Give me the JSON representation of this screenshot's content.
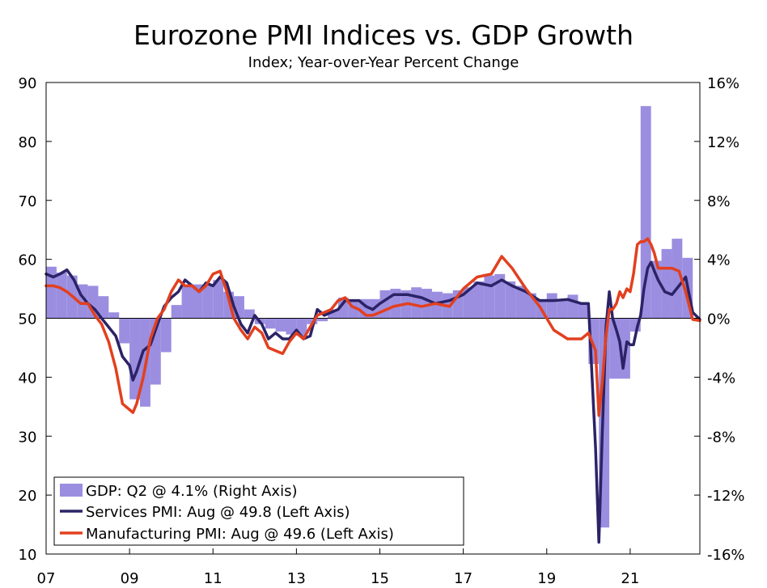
{
  "chart_data": {
    "type": "bar+line",
    "title": "Eurozone PMI Indices vs. GDP Growth",
    "subtitle": "Index; Year-over-Year Percent Change",
    "x_tick_labels": [
      "07",
      "09",
      "11",
      "13",
      "15",
      "17",
      "19",
      "21"
    ],
    "x_tick_years": [
      2007,
      2009,
      2011,
      2013,
      2015,
      2017,
      2019,
      2021
    ],
    "x_range": [
      2007.0,
      2022.67
    ],
    "left_axis": {
      "ylim": [
        10,
        90
      ],
      "ticks": [
        10,
        20,
        30,
        40,
        50,
        60,
        70,
        80,
        90
      ],
      "tick_labels": [
        "10",
        "20",
        "30",
        "40",
        "50",
        "60",
        "70",
        "80",
        "90"
      ]
    },
    "right_axis": {
      "ylim": [
        -16,
        16
      ],
      "ticks": [
        -16,
        -12,
        -8,
        -4,
        0,
        4,
        8,
        12,
        16
      ],
      "tick_labels": [
        "-16%",
        "-12%",
        "-8%",
        "-4%",
        "0%",
        "4%",
        "8%",
        "12%",
        "16%"
      ]
    },
    "legend": {
      "placement": "bottom-left",
      "entries": [
        {
          "label": "GDP: Q2 @ 4.1% (Right Axis)",
          "kind": "bar"
        },
        {
          "label": "Services PMI: Aug @ 49.8 (Left Axis)",
          "kind": "line"
        },
        {
          "label": "Manufacturing PMI: Aug @ 49.6 (Left Axis)",
          "kind": "line"
        }
      ]
    },
    "colors": {
      "gdp": "#9b8ee0",
      "services": "#2b2366",
      "manufacturing": "#e2401f"
    },
    "gdp": {
      "axis": "right",
      "periods": [
        "2007Q1",
        "2007Q2",
        "2007Q3",
        "2007Q4",
        "2008Q1",
        "2008Q2",
        "2008Q3",
        "2008Q4",
        "2009Q1",
        "2009Q2",
        "2009Q3",
        "2009Q4",
        "2010Q1",
        "2010Q2",
        "2010Q3",
        "2010Q4",
        "2011Q1",
        "2011Q2",
        "2011Q3",
        "2011Q4",
        "2012Q1",
        "2012Q2",
        "2012Q3",
        "2012Q4",
        "2013Q1",
        "2013Q2",
        "2013Q3",
        "2013Q4",
        "2014Q1",
        "2014Q2",
        "2014Q3",
        "2014Q4",
        "2015Q1",
        "2015Q2",
        "2015Q3",
        "2015Q4",
        "2016Q1",
        "2016Q2",
        "2016Q3",
        "2016Q4",
        "2017Q1",
        "2017Q2",
        "2017Q3",
        "2017Q4",
        "2018Q1",
        "2018Q2",
        "2018Q3",
        "2018Q4",
        "2019Q1",
        "2019Q2",
        "2019Q3",
        "2019Q4",
        "2020Q1",
        "2020Q2",
        "2020Q3",
        "2020Q4",
        "2021Q1",
        "2021Q2",
        "2021Q3",
        "2021Q4",
        "2022Q1",
        "2022Q2"
      ],
      "values": [
        3.5,
        3.1,
        2.9,
        2.3,
        2.2,
        1.5,
        0.4,
        -1.7,
        -5.5,
        -6.0,
        -4.5,
        -2.3,
        0.9,
        2.2,
        2.3,
        2.3,
        2.6,
        1.8,
        1.5,
        0.6,
        -0.4,
        -0.7,
        -0.9,
        -1.1,
        -1.2,
        -0.4,
        -0.2,
        0.6,
        1.4,
        1.2,
        1.3,
        1.3,
        1.9,
        2.0,
        1.9,
        2.1,
        2.0,
        1.8,
        1.7,
        1.9,
        2.1,
        2.5,
        2.9,
        3.0,
        2.5,
        2.2,
        1.7,
        1.3,
        1.7,
        1.3,
        1.6,
        1.0,
        -3.1,
        -14.2,
        -4.1,
        -4.1,
        -0.9,
        14.4,
        3.9,
        4.7,
        5.4,
        4.1
      ]
    },
    "services_pmi": {
      "axis": "left",
      "x": [
        2007.0,
        2007.17,
        2007.33,
        2007.5,
        2007.67,
        2007.83,
        2008.0,
        2008.17,
        2008.33,
        2008.5,
        2008.67,
        2008.83,
        2009.0,
        2009.08,
        2009.17,
        2009.33,
        2009.5,
        2009.67,
        2009.83,
        2010.0,
        2010.17,
        2010.33,
        2010.5,
        2010.67,
        2010.83,
        2011.0,
        2011.17,
        2011.33,
        2011.5,
        2011.67,
        2011.83,
        2012.0,
        2012.17,
        2012.33,
        2012.5,
        2012.67,
        2012.83,
        2013.0,
        2013.17,
        2013.33,
        2013.5,
        2013.67,
        2013.83,
        2014.0,
        2014.17,
        2014.33,
        2014.5,
        2014.67,
        2014.83,
        2015.0,
        2015.33,
        2015.67,
        2016.0,
        2016.33,
        2016.67,
        2017.0,
        2017.33,
        2017.67,
        2017.92,
        2018.17,
        2018.5,
        2018.83,
        2019.17,
        2019.5,
        2019.83,
        2020.0,
        2020.17,
        2020.25,
        2020.33,
        2020.42,
        2020.5,
        2020.58,
        2020.67,
        2020.75,
        2020.83,
        2020.92,
        2021.0,
        2021.08,
        2021.17,
        2021.25,
        2021.33,
        2021.42,
        2021.5,
        2021.58,
        2021.67,
        2021.83,
        2022.0,
        2022.17,
        2022.33,
        2022.5,
        2022.67
      ],
      "values": [
        57.5,
        57.0,
        57.5,
        58.2,
        56.5,
        54.0,
        52.5,
        51.5,
        50.0,
        48.5,
        47.0,
        43.5,
        42.0,
        39.5,
        41.0,
        44.5,
        45.5,
        49.0,
        52.0,
        53.5,
        54.5,
        56.5,
        55.5,
        54.5,
        56.0,
        55.5,
        57.0,
        56.0,
        52.0,
        49.0,
        47.5,
        50.5,
        49.0,
        46.5,
        47.5,
        46.5,
        46.5,
        48.0,
        46.5,
        47.0,
        51.5,
        50.5,
        51.0,
        51.5,
        53.0,
        53.0,
        53.0,
        52.0,
        51.5,
        52.5,
        54.0,
        54.0,
        53.5,
        52.5,
        53.0,
        54.0,
        56.0,
        55.5,
        56.5,
        55.5,
        54.5,
        53.0,
        53.0,
        53.2,
        52.5,
        52.5,
        28.0,
        12.0,
        30.0,
        48.5,
        54.5,
        50.0,
        48.0,
        46.0,
        41.5,
        46.0,
        45.5,
        45.5,
        48.5,
        50.5,
        55.0,
        58.5,
        59.5,
        58.0,
        56.5,
        54.5,
        54.0,
        55.5,
        57.0,
        51.0,
        49.8
      ]
    },
    "manufacturing_pmi": {
      "axis": "left",
      "x": [
        2007.0,
        2007.17,
        2007.33,
        2007.5,
        2007.67,
        2007.83,
        2008.0,
        2008.17,
        2008.33,
        2008.5,
        2008.67,
        2008.83,
        2009.0,
        2009.08,
        2009.17,
        2009.33,
        2009.5,
        2009.67,
        2009.83,
        2010.0,
        2010.17,
        2010.33,
        2010.5,
        2010.67,
        2010.83,
        2011.0,
        2011.17,
        2011.33,
        2011.5,
        2011.67,
        2011.83,
        2012.0,
        2012.17,
        2012.33,
        2012.5,
        2012.67,
        2012.83,
        2013.0,
        2013.17,
        2013.33,
        2013.5,
        2013.67,
        2013.83,
        2014.0,
        2014.17,
        2014.33,
        2014.5,
        2014.67,
        2014.83,
        2015.0,
        2015.33,
        2015.67,
        2016.0,
        2016.33,
        2016.67,
        2017.0,
        2017.33,
        2017.67,
        2017.92,
        2018.17,
        2018.5,
        2018.83,
        2019.17,
        2019.5,
        2019.83,
        2020.0,
        2020.17,
        2020.25,
        2020.33,
        2020.42,
        2020.5,
        2020.58,
        2020.67,
        2020.75,
        2020.83,
        2020.92,
        2021.0,
        2021.08,
        2021.17,
        2021.25,
        2021.33,
        2021.42,
        2021.5,
        2021.58,
        2021.67,
        2021.83,
        2022.0,
        2022.17,
        2022.33,
        2022.5,
        2022.67
      ],
      "values": [
        55.5,
        55.5,
        55.2,
        54.5,
        53.5,
        52.5,
        52.5,
        50.5,
        49.0,
        46.0,
        41.5,
        35.5,
        34.5,
        34.0,
        35.5,
        40.0,
        46.5,
        50.0,
        51.5,
        54.5,
        56.5,
        55.5,
        55.5,
        54.5,
        55.5,
        57.5,
        58.0,
        54.5,
        50.0,
        48.0,
        46.5,
        48.5,
        47.5,
        45.0,
        44.5,
        44.0,
        46.0,
        47.5,
        46.5,
        48.5,
        50.5,
        51.0,
        51.5,
        53.0,
        53.5,
        52.0,
        51.5,
        50.5,
        50.5,
        51.0,
        52.0,
        52.5,
        52.0,
        52.5,
        52.0,
        55.0,
        57.0,
        57.5,
        60.5,
        58.5,
        55.0,
        52.0,
        48.0,
        46.5,
        46.5,
        47.5,
        44.5,
        33.5,
        39.0,
        47.0,
        51.5,
        51.5,
        52.5,
        54.5,
        53.5,
        55.0,
        54.5,
        57.5,
        62.5,
        63.0,
        63.0,
        63.5,
        62.5,
        61.0,
        58.5,
        58.5,
        58.5,
        58.0,
        54.5,
        49.8,
        49.6
      ]
    }
  }
}
